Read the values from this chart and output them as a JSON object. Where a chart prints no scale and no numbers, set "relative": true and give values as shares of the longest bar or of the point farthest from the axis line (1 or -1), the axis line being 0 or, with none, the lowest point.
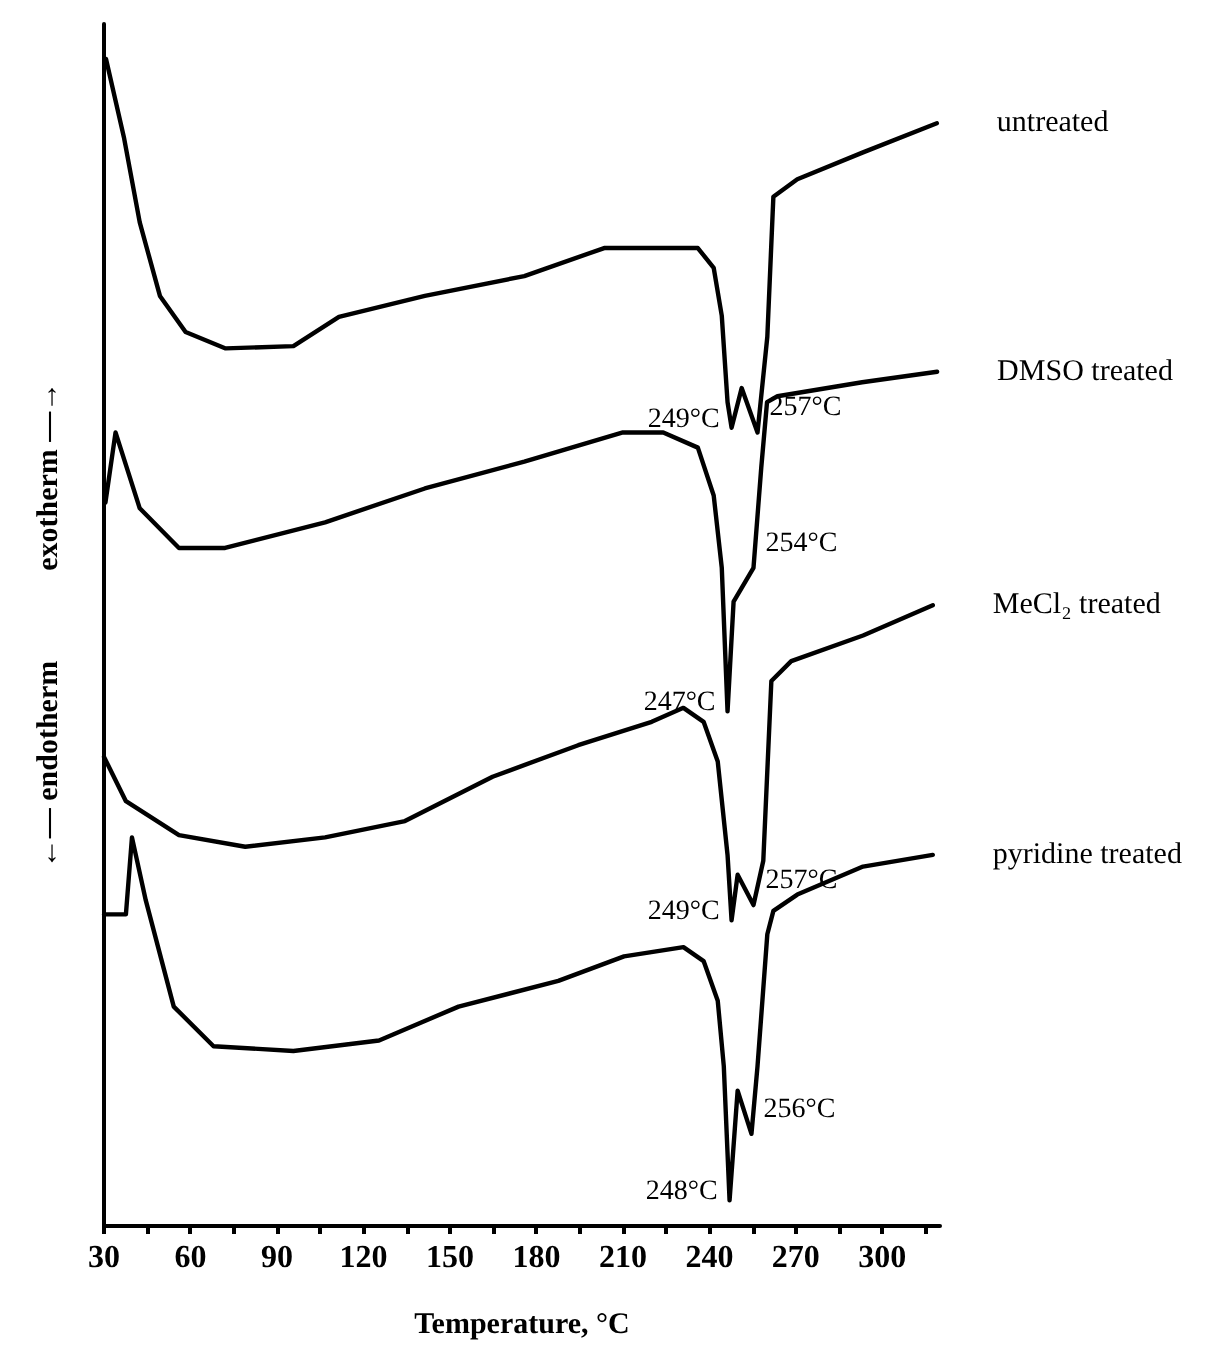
{
  "chart_data": {
    "type": "line",
    "relative": true,
    "xlabel": "Temperature, °C",
    "ylabel": "←— endotherm            exotherm —→",
    "xlim": [
      30,
      320
    ],
    "xticks": [
      30,
      {
        "value": 45,
        "label": null
      },
      60,
      {
        "value": 75,
        "label": null
      },
      90,
      {
        "value": 105,
        "label": null
      },
      120,
      {
        "value": 135,
        "label": null
      },
      150,
      {
        "value": 165,
        "label": null
      },
      180,
      {
        "value": 195,
        "label": null
      },
      210,
      {
        "value": 225,
        "label": null
      },
      240,
      {
        "value": 255,
        "label": null
      },
      270,
      {
        "value": 285,
        "label": null
      },
      300,
      {
        "value": 315,
        "label": null
      }
    ],
    "series": [
      {
        "name": "untreated",
        "color": "#000000",
        "x": [
          30.7,
          36.9,
          42.4,
          49.4,
          58.3,
          72.2,
          95.7,
          111.5,
          141.3,
          175.8,
          203.5,
          236,
          241.5,
          244.3,
          246.3,
          247.7,
          251.2,
          256.7,
          260.1,
          262.2,
          270.5,
          293.3,
          318.9
        ],
        "values": [
          1.0,
          0.933,
          0.86,
          0.797,
          0.766,
          0.752,
          0.754,
          0.779,
          0.797,
          0.814,
          0.838,
          0.838,
          0.821,
          0.78,
          0.706,
          0.684,
          0.718,
          0.68,
          0.762,
          0.882,
          0.897,
          0.92,
          0.945
        ]
      },
      {
        "name": "DMSO treated",
        "color": "#000000",
        "x": [
          30.5,
          34,
          42.4,
          56,
          72,
          106.7,
          141.3,
          175.8,
          210,
          224,
          236,
          241.5,
          244.3,
          246.3,
          248.4,
          255.3,
          258,
          260,
          263.6,
          293,
          319
        ],
        "values": [
          0.62,
          0.68,
          0.615,
          0.581,
          0.581,
          0.603,
          0.632,
          0.655,
          0.68,
          0.68,
          0.667,
          0.626,
          0.564,
          0.441,
          0.535,
          0.564,
          0.65,
          0.706,
          0.711,
          0.723,
          0.732
        ]
      },
      {
        "name": "MeCl₂ treated",
        "color": "#000000",
        "x": [
          30,
          37.6,
          56,
          79,
          106.7,
          134.4,
          164.8,
          194.5,
          220,
          231,
          238,
          242.9,
          246.3,
          247.7,
          249.8,
          255.3,
          258.7,
          261.5,
          268.4,
          293.3,
          317.5
        ],
        "values": [
          0.402,
          0.364,
          0.335,
          0.325,
          0.333,
          0.347,
          0.385,
          0.412,
          0.432,
          0.444,
          0.432,
          0.398,
          0.318,
          0.262,
          0.301,
          0.275,
          0.313,
          0.467,
          0.484,
          0.506,
          0.532
        ]
      },
      {
        "name": "pyridine treated",
        "color": "#000000",
        "x": [
          30,
          37.6,
          39.7,
          44.5,
          54.2,
          68,
          95.7,
          125.4,
          153,
          187.6,
          210.4,
          231,
          238,
          242.9,
          245,
          247,
          249.8,
          254.6,
          256.7,
          260.1,
          262.2,
          270.5,
          293.3,
          317.5
        ],
        "values": [
          0.267,
          0.267,
          0.333,
          0.279,
          0.188,
          0.154,
          0.15,
          0.159,
          0.188,
          0.21,
          0.231,
          0.239,
          0.227,
          0.193,
          0.137,
          0.022,
          0.116,
          0.079,
          0.137,
          0.25,
          0.27,
          0.284,
          0.308,
          0.318
        ]
      }
    ],
    "annotations": [
      {
        "text": "249°C",
        "x": 247.7,
        "y": 0.684
      },
      {
        "text": "257°C",
        "x": 256.7,
        "y": 0.68
      },
      {
        "text": "247°C",
        "x": 246.3,
        "y": 0.441
      },
      {
        "text": "254°C",
        "x": 255.3,
        "y": 0.564
      },
      {
        "text": "249°C",
        "x": 247.7,
        "y": 0.262
      },
      {
        "text": "257°C",
        "x": 255.3,
        "y": 0.275
      },
      {
        "text": "248°C",
        "x": 247,
        "y": 0.022
      },
      {
        "text": "256°C",
        "x": 254.6,
        "y": 0.079
      }
    ],
    "grid": false,
    "legend": false,
    "marker": "none",
    "line_style": "solid"
  }
}
